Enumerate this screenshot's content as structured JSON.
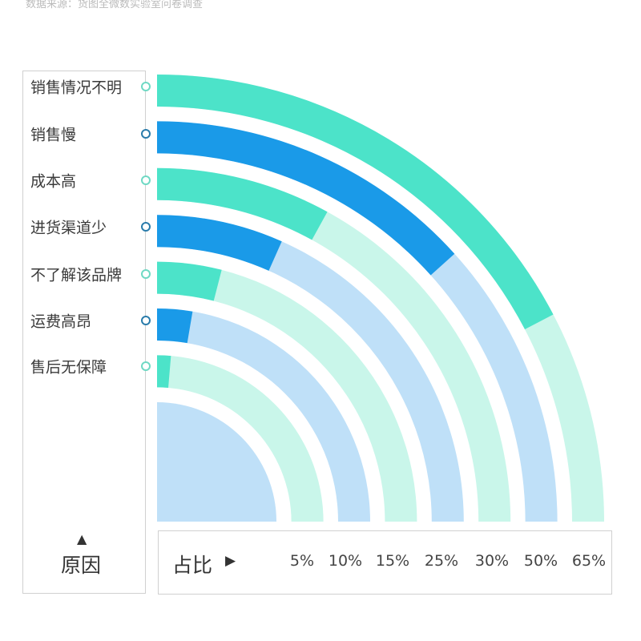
{
  "source": "数据来源：货图全微数实验室问卷调查",
  "chart_data": {
    "type": "radial-bar",
    "category_axis_title": "原因",
    "value_axis_title": "占比",
    "categories": [
      "销售情况不明",
      "销售慢",
      "成本高",
      "进货渠道少",
      "不了解该品牌",
      "运费高昂",
      "售后无保障"
    ],
    "values": [
      65,
      50,
      30,
      25,
      15,
      10,
      5
    ],
    "unit": "%",
    "tick_labels": [
      "5%",
      "10%",
      "15%",
      "25%",
      "30%",
      "50%",
      "65%"
    ],
    "colors": {
      "teal": "#4ce3c9",
      "blue": "#1a9ae8",
      "teal_track": "#c9f6ea",
      "blue_track": "#bfe0f8",
      "teal_dot": "#6fd9c4",
      "blue_dot": "#2a7cab"
    }
  }
}
